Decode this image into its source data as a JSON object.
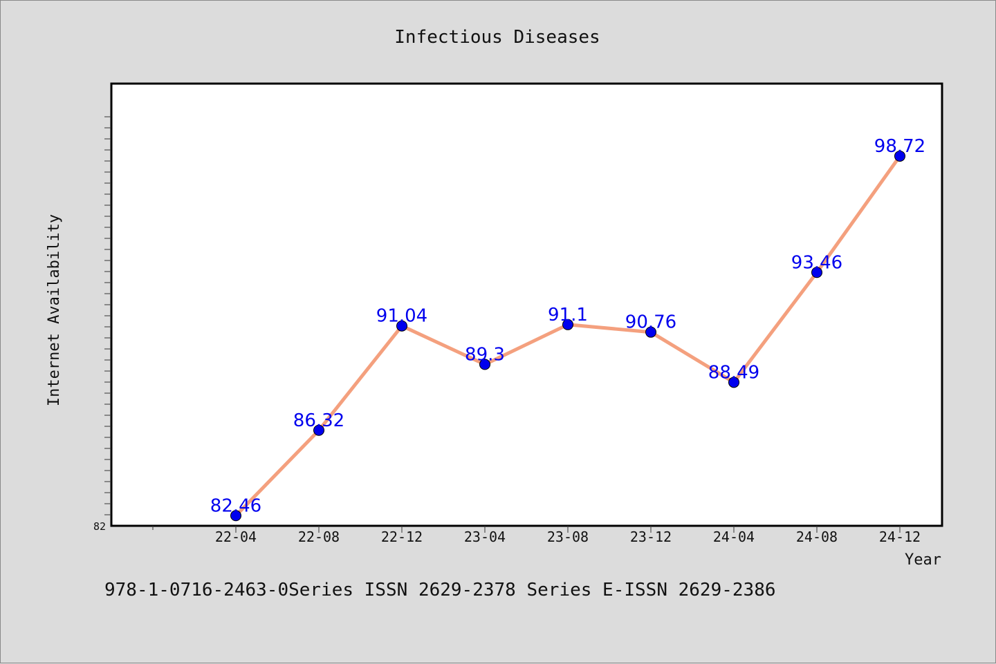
{
  "chart_data": {
    "type": "line",
    "title": "Infectious Diseases",
    "xlabel": "Year",
    "ylabel": "Internet Availability",
    "categories": [
      "22-04",
      "22-08",
      "22-12",
      "23-04",
      "23-08",
      "23-12",
      "24-04",
      "24-08",
      "24-12"
    ],
    "series": [
      {
        "values": [
          82.46,
          86.32,
          91.04,
          89.3,
          91.1,
          90.76,
          88.49,
          93.46,
          98.72
        ]
      }
    ],
    "data_labels": [
      "82.46",
      "86.32",
      "91.04",
      "89.3",
      "91.1",
      "90.76",
      "88.49",
      "93.46",
      "98.72"
    ],
    "ylim": [
      82,
      102
    ],
    "y_tick_labels": [
      "82"
    ],
    "grid": false,
    "line_color": "#f4a07e",
    "marker_color": "#0000ee",
    "label_color": "#0000ee"
  },
  "footer": {
    "text": "978-1-0716-2463-0Series ISSN 2629-2378 Series E-ISSN 2629-2386"
  }
}
